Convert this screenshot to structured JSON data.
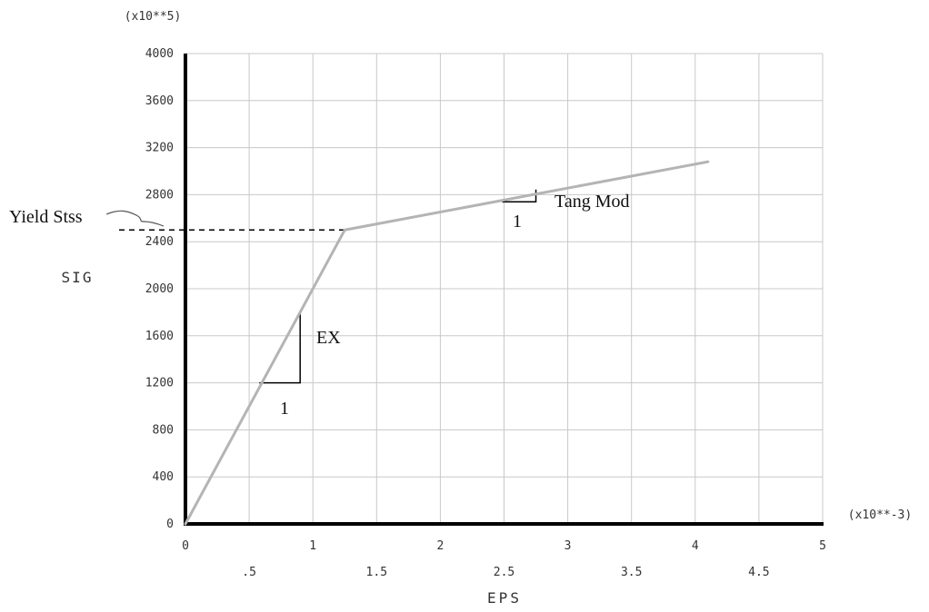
{
  "chart_data": {
    "type": "line",
    "xlabel": "EPS",
    "ylabel": "SIG",
    "x_multiplier": "(x10**-3)",
    "y_multiplier": "(x10**5)",
    "xlim": [
      0,
      5
    ],
    "ylim": [
      0,
      4000
    ],
    "grid": true,
    "x_ticks_upper": [
      "0",
      "1",
      "2",
      "3",
      "4",
      "5"
    ],
    "x_ticks_lower": [
      ".5",
      "1.5",
      "2.5",
      "3.5",
      "4.5"
    ],
    "y_ticks": [
      "0",
      "400",
      "800",
      "1200",
      "1600",
      "2000",
      "2400",
      "2800",
      "3200",
      "3600",
      "4000"
    ],
    "series": [
      {
        "x": [
          0,
          1.25,
          4.1
        ],
        "y": [
          0,
          2500,
          3080
        ]
      }
    ],
    "annotations": {
      "yield_label": "Yield Stss",
      "yield_stress": 2500,
      "ex_label": "EX",
      "ex_unit": "1",
      "tang_label": "Tang Mod",
      "tang_unit": "1"
    },
    "colors": {
      "curve": "#b4b4b4",
      "grid": "#c8c8c8",
      "axis": "#000000"
    }
  }
}
